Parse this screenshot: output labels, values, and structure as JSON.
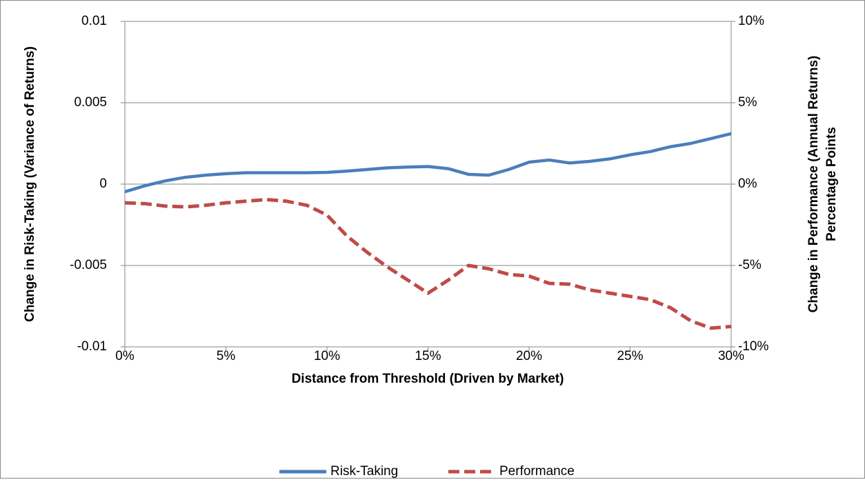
{
  "chart_data": {
    "type": "line",
    "x_label": "Distance from Threshold (Driven by Market)",
    "y_label": "Change in Risk-Taking (Variance of Returns)",
    "y2_label": [
      "Change in Performance (Annual Returns)",
      "Percentage Points"
    ],
    "x": [
      0,
      1,
      2,
      3,
      4,
      5,
      6,
      7,
      8,
      9,
      10,
      11,
      12,
      13,
      14,
      15,
      16,
      17,
      18,
      19,
      20,
      21,
      22,
      23,
      24,
      25,
      26,
      27,
      28,
      29,
      30
    ],
    "xlim": [
      0,
      30
    ],
    "xticks": [
      {
        "value": 0,
        "label": "0%"
      },
      {
        "value": 5,
        "label": "5%"
      },
      {
        "value": 10,
        "label": "10%"
      },
      {
        "value": 15,
        "label": "15%"
      },
      {
        "value": 20,
        "label": "20%"
      },
      {
        "value": 25,
        "label": "25%"
      },
      {
        "value": 30,
        "label": "30%"
      }
    ],
    "ylim": [
      -0.01,
      0.01
    ],
    "yticks": [
      -0.01,
      -0.005,
      0,
      0.005,
      0.01
    ],
    "y2lim": [
      -10,
      10
    ],
    "y2ticks": [
      {
        "value": -10,
        "label": "-10%"
      },
      {
        "value": -5,
        "label": "-5%"
      },
      {
        "value": 0,
        "label": "0%"
      },
      {
        "value": 5,
        "label": "5%"
      },
      {
        "value": 10,
        "label": "10%"
      }
    ],
    "grid": true,
    "legend": "bottom",
    "series": [
      {
        "name": "Risk-Taking",
        "color": "#4a7ebb",
        "dash": false,
        "values": [
          -0.00047,
          -0.0001,
          0.0002,
          0.00042,
          0.00055,
          0.00064,
          0.0007,
          0.0007,
          0.0007,
          0.0007,
          0.00072,
          0.0008,
          0.0009,
          0.001,
          0.00105,
          0.00108,
          0.00095,
          0.0006,
          0.00055,
          0.0009,
          0.00135,
          0.00148,
          0.0013,
          0.0014,
          0.00155,
          0.0018,
          0.002,
          0.0023,
          0.0025,
          0.0028,
          0.0031
        ]
      },
      {
        "name": "Performance",
        "color": "#be4b48",
        "dash": true,
        "axis": "y2",
        "values": [
          -1.15,
          -1.2,
          -1.35,
          -1.4,
          -1.3,
          -1.15,
          -1.05,
          -0.95,
          -1.05,
          -1.3,
          -1.9,
          -3.2,
          -4.2,
          -5.1,
          -5.9,
          -6.7,
          -5.9,
          -5.0,
          -5.2,
          -5.55,
          -5.65,
          -6.1,
          -6.15,
          -6.5,
          -6.7,
          -6.9,
          -7.1,
          -7.6,
          -8.4,
          -8.85,
          -8.75
        ]
      }
    ]
  }
}
